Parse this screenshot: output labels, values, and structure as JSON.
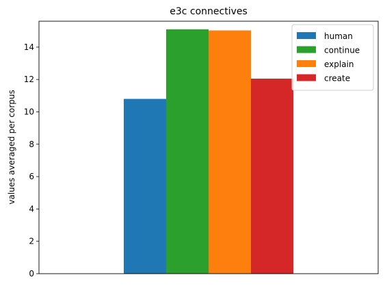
{
  "chart_data": {
    "type": "bar",
    "title": "e3c connectives",
    "xlabel": "",
    "ylabel": "values averaged per corpus",
    "categories": [
      ""
    ],
    "ylim": [
      0,
      15.6
    ],
    "yticks": [
      0,
      2,
      4,
      6,
      8,
      10,
      12,
      14
    ],
    "grid": false,
    "legend_position": "top-right",
    "series": [
      {
        "name": "human",
        "values": [
          10.8
        ],
        "color": "#1f77b4"
      },
      {
        "name": "continue",
        "values": [
          15.1
        ],
        "color": "#2ca02c"
      },
      {
        "name": "explain",
        "values": [
          15.03
        ],
        "color": "#ff7f0e"
      },
      {
        "name": "create",
        "values": [
          12.05
        ],
        "color": "#d62728"
      }
    ]
  }
}
